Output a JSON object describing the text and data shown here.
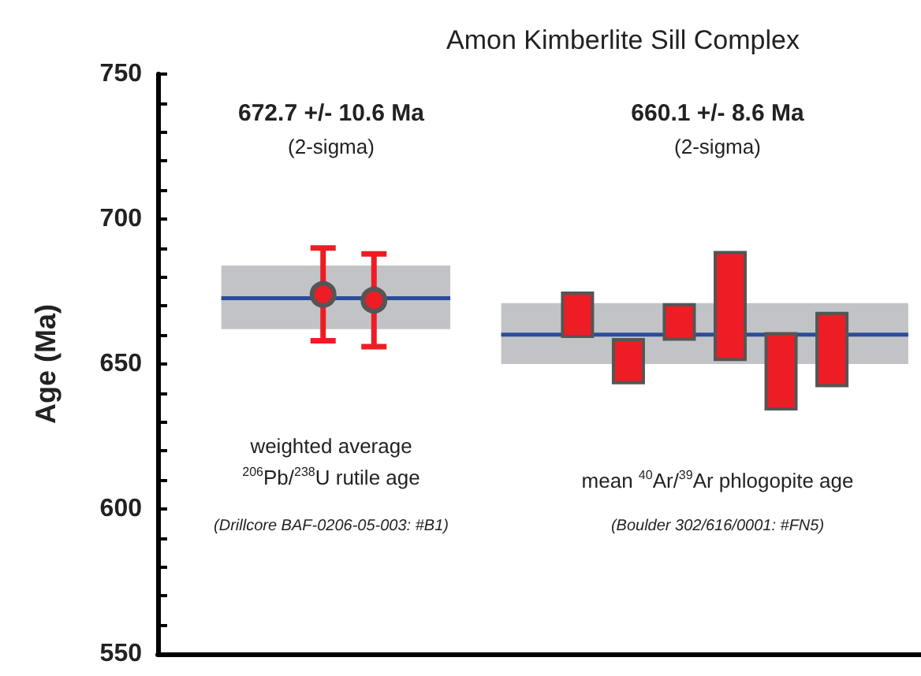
{
  "chart_data": {
    "type": "bar",
    "title": "Amon Kimberlite Sill Complex",
    "ylabel": "Age (Ma)",
    "annotations": [
      "672.7 +/- 10.6 Ma",
      "(2-sigma)",
      "weighted average",
      "$^{206}$Pb/$^{238}$U rutile age",
      "(Drillcore BAF-0206-05-003: #B1)",
      "660.1 +/- 8.6 Ma",
      "(2-sigma)",
      "mean $^{40}$Ar/$^{39}$Ar phlogopite age",
      "(Boulder 302/616/0001: #FN5)"
    ],
    "categories": [
      null,
      null,
      null,
      null,
      null,
      null,
      null,
      null,
      null,
      null,
      null,
      null,
      null,
      null,
      null,
      null,
      null,
      null,
      null,
      null,
      null,
      null,
      null,
      null,
      null,
      null,
      null,
      null,
      null,
      null
    ],
    "series": [
      {
        "type": "line",
        "color": "#2b4c9b",
        "values": [
          null,
          null,
          672.7,
          672.7,
          672.7,
          672.7,
          672.7,
          672.7,
          672.7,
          672.7,
          672.7,
          672.7,
          null,
          null,
          null,
          null,
          null,
          null,
          null,
          null,
          null,
          null,
          null,
          null,
          null,
          null,
          null,
          null,
          null,
          null
        ],
        "lower": [
          null,
          null,
          662,
          662,
          662,
          662,
          662,
          662,
          662,
          662,
          662,
          662,
          null,
          null,
          null,
          null,
          null,
          null,
          null,
          null,
          null,
          null,
          null,
          null,
          null,
          null,
          null,
          null,
          null,
          null
        ],
        "upper": [
          null,
          null,
          684,
          684,
          684,
          684,
          684,
          684,
          684,
          684,
          684,
          684,
          null,
          null,
          null,
          null,
          null,
          null,
          null,
          null,
          null,
          null,
          null,
          null,
          null,
          null,
          null,
          null,
          null,
          null
        ]
      },
      {
        "type": "line",
        "color": "#2b4c9b",
        "values": [
          null,
          null,
          null,
          null,
          null,
          null,
          null,
          null,
          null,
          null,
          null,
          null,
          null,
          660.1,
          660.1,
          660.1,
          null,
          660.1,
          660.1,
          660.1,
          null,
          660.1,
          null,
          660.1,
          null,
          660.1,
          null,
          660.1,
          660.1,
          660.1
        ],
        "lower": [
          null,
          null,
          null,
          null,
          null,
          null,
          null,
          null,
          null,
          null,
          null,
          null,
          null,
          650,
          650,
          650,
          650,
          650,
          650,
          650,
          650,
          650,
          650,
          650,
          650,
          650,
          650,
          650,
          650,
          650
        ],
        "upper": [
          null,
          null,
          null,
          null,
          null,
          null,
          null,
          null,
          null,
          null,
          null,
          null,
          null,
          671,
          671,
          671,
          671,
          671,
          671,
          671,
          671,
          671,
          671,
          671,
          671,
          671,
          671,
          671,
          671,
          671
        ]
      },
      {
        "type": "scatter",
        "color": "#ee1c24",
        "marker": "circle",
        "values": [
          null,
          null,
          null,
          null,
          null,
          null,
          674,
          null,
          672,
          null,
          null,
          null,
          null,
          null,
          null,
          null,
          null,
          null,
          null,
          null,
          null,
          null,
          null,
          null,
          null,
          null,
          null,
          null,
          null,
          null
        ],
        "errors": [
          null,
          null,
          null,
          null,
          null,
          null,
          [
            658,
            690
          ],
          null,
          [
            656,
            688
          ],
          null,
          null,
          null,
          null,
          null,
          null,
          null,
          null,
          null,
          null,
          null,
          null,
          null,
          null,
          null,
          null,
          null,
          null,
          null,
          null,
          null
        ]
      },
      {
        "color": "#ee1c24",
        "values": [
          null,
          null,
          null,
          null,
          null,
          null,
          null,
          null,
          null,
          null,
          null,
          null,
          null,
          null,
          null,
          null,
          16,
          null,
          16,
          null,
          13,
          null,
          38,
          null,
          27,
          null,
          26,
          null,
          null,
          null
        ],
        "base": [
          null,
          null,
          null,
          null,
          null,
          null,
          null,
          null,
          null,
          null,
          null,
          null,
          null,
          null,
          null,
          null,
          659,
          null,
          643,
          null,
          658,
          null,
          651,
          null,
          634,
          null,
          642,
          null,
          null,
          null
        ]
      }
    ],
    "ylim": [
      550,
      750
    ],
    "yticks": [
      550,
      {
        "value": 560,
        "label": null
      },
      {
        "value": 570,
        "label": null
      },
      {
        "value": 580,
        "label": null
      },
      {
        "value": 590,
        "label": null
      },
      600,
      {
        "value": 610,
        "label": null
      },
      {
        "value": 620,
        "label": null
      },
      {
        "value": 630,
        "label": null
      },
      {
        "value": 640,
        "label": null
      },
      650,
      {
        "value": 660,
        "label": null
      },
      {
        "value": 670,
        "label": null
      },
      {
        "value": 680,
        "label": null
      },
      {
        "value": 690,
        "label": null
      },
      700,
      {
        "value": 710,
        "label": null
      },
      {
        "value": 720,
        "label": null
      },
      {
        "value": 730,
        "label": null
      },
      {
        "value": 740,
        "label": null
      },
      750
    ],
    "tick_labels": "y"
  }
}
